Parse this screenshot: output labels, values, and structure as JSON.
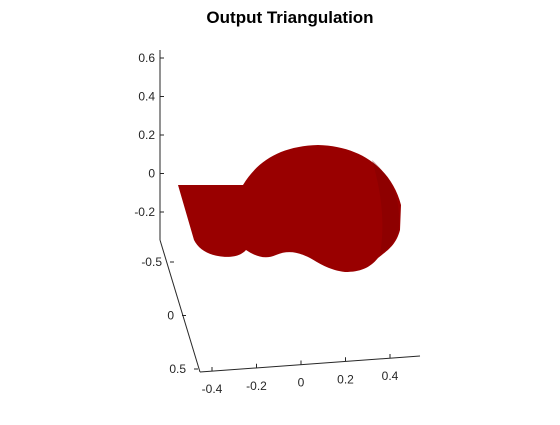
{
  "chart_data": {
    "type": "surface",
    "title": "Output Triangulation",
    "xlabel": "",
    "ylabel": "",
    "zlabel": "",
    "view": "3d",
    "grid": false,
    "mesh_color": "#990000",
    "background": "#ffffff",
    "axes": {
      "x": {
        "ticks": [
          -0.4,
          -0.2,
          0,
          0.2,
          0.4
        ],
        "tick_labels": [
          "-0.4",
          "-0.2",
          "0",
          "0.2",
          "0.4"
        ]
      },
      "y": {
        "ticks": [
          -0.5,
          0,
          0.5
        ],
        "tick_labels": [
          "-0.5",
          "0",
          "0.5"
        ]
      },
      "z": {
        "ticks": [
          -0.2,
          0,
          0.2,
          0.4,
          0.6
        ],
        "tick_labels": [
          "-0.2",
          "0",
          "0.2",
          "0.4",
          "0.6"
        ]
      }
    }
  }
}
